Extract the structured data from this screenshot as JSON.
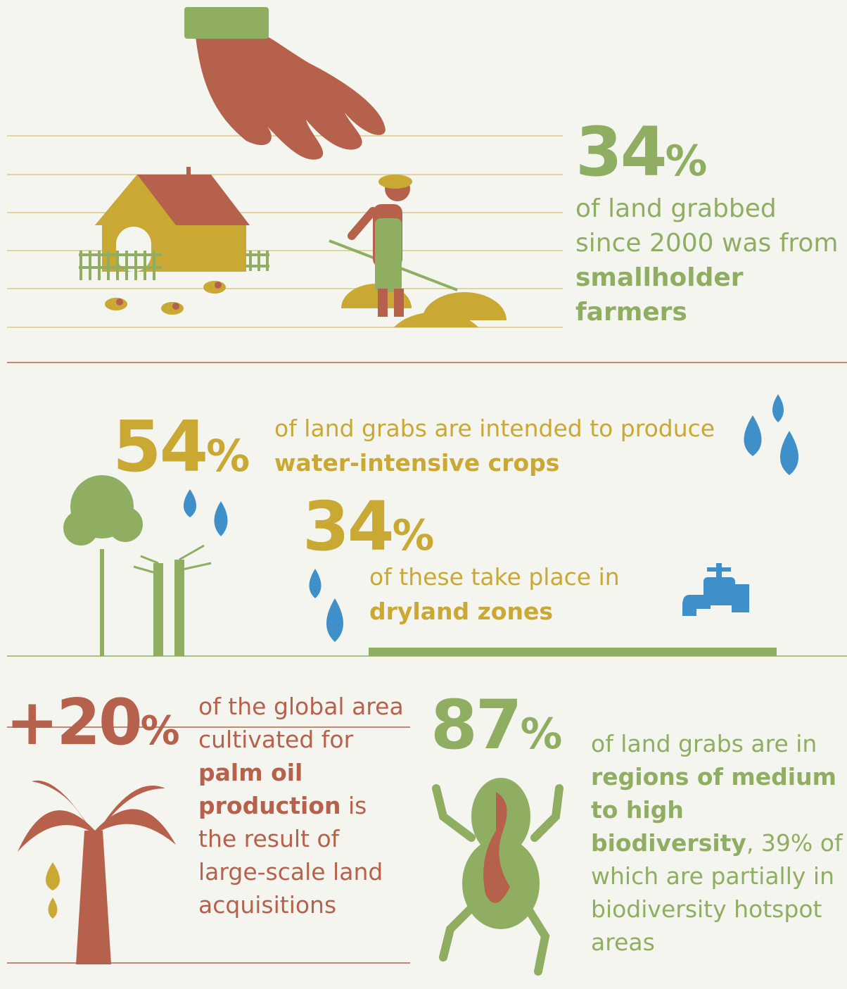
{
  "stats": [
    {
      "number": "34",
      "unit": "%",
      "text": [
        {
          "text": "of land grabbed since 2000 was from "
        },
        {
          "text": "smallholder farmers",
          "bold": true
        }
      ]
    },
    {
      "number": "54",
      "unit": "%",
      "text": [
        {
          "text": "of land grabs are intended to produce "
        },
        {
          "text": "water-intensive crops",
          "bold": true
        }
      ]
    },
    {
      "number": "34",
      "unit": "%",
      "text": [
        {
          "text": "of these take place in "
        },
        {
          "text": "dryland zones",
          "bold": true
        }
      ]
    },
    {
      "number": "+20",
      "unit": "%",
      "text": [
        {
          "text": "of the global area cultivated for "
        },
        {
          "text": "palm oil production",
          "bold": true
        },
        {
          "text": " is the result of large-scale land acquisitions"
        }
      ]
    },
    {
      "number": "87",
      "unit": "%",
      "text": [
        {
          "text": "of land grabs are in "
        },
        {
          "text": "regions of medium to high biodiversity",
          "bold": true
        },
        {
          "text": ", 39% of which are partially in biodiversity hotspot areas"
        }
      ]
    }
  ]
}
